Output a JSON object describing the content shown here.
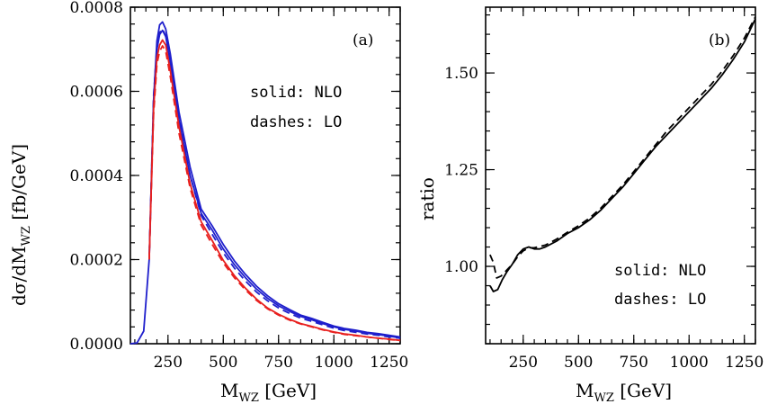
{
  "chart_data": [
    {
      "type": "line",
      "panel_label": "(a)",
      "xlabel_main": "M",
      "xlabel_sub": "WZ",
      "xlabel_unit": " [GeV]",
      "ylabel_main": "dσ/dM",
      "ylabel_sub": "WZ",
      "ylabel_unit": " [fb/GeV]",
      "xlim": [
        80,
        1300
      ],
      "ylim": [
        0,
        0.0008
      ],
      "xticks": [
        250,
        500,
        750,
        1000,
        1250
      ],
      "yticks": [
        0,
        0.0002,
        0.0004,
        0.0006,
        0.0008
      ],
      "xtick_labels": [
        "250",
        "500",
        "750",
        "1000",
        "1250"
      ],
      "ytick_labels": [
        "0.0000",
        "0.0002",
        "0.0004",
        "0.0006",
        "0.0008"
      ],
      "legend": {
        "solid": "solid: NLO",
        "dashes": "dashes: LO"
      },
      "series": [
        {
          "style": "solid",
          "color": "#1f1fcc",
          "x": [
            80,
            110,
            140,
            165,
            185,
            200,
            212,
            225,
            240,
            260,
            300,
            350,
            400,
            450,
            500,
            550,
            600,
            650,
            700,
            750,
            800,
            850,
            900,
            950,
            1000,
            1050,
            1100,
            1150,
            1200,
            1250,
            1300
          ],
          "y": [
            0,
            2e-06,
            3e-05,
            0.0002,
            0.00058,
            0.00072,
            0.000758,
            0.000765,
            0.000748,
            0.00069,
            0.00055,
            0.00042,
            0.00032,
            0.00028,
            0.000236,
            0.000197,
            0.000165,
            0.000137,
            0.000114,
            9.5e-05,
            8.1e-05,
            6.8e-05,
            6e-05,
            5.1e-05,
            4.2e-05,
            3.6e-05,
            3.2e-05,
            2.7e-05,
            2.4e-05,
            2e-05,
            1.6e-05
          ]
        },
        {
          "style": "solid",
          "color": "#1f1fcc",
          "x": [
            165,
            185,
            200,
            212,
            225,
            240,
            260,
            300,
            350,
            400,
            450,
            500,
            550,
            600,
            650,
            700,
            750,
            800,
            850,
            900,
            950,
            1000,
            1050,
            1100,
            1150,
            1200,
            1250,
            1300
          ],
          "y": [
            0.0002,
            0.00057,
            0.0007,
            0.000735,
            0.000745,
            0.00073,
            0.00067,
            0.00053,
            0.0004,
            0.00031,
            0.00027,
            0.000225,
            0.000188,
            0.000157,
            0.00013,
            0.000108,
            9e-05,
            7.7e-05,
            6.5e-05,
            5.7e-05,
            4.8e-05,
            4e-05,
            3.4e-05,
            3e-05,
            2.5e-05,
            2.2e-05,
            1.8e-05,
            1.4e-05
          ]
        },
        {
          "style": "dashed",
          "color": "#1f1fcc",
          "x": [
            165,
            185,
            200,
            212,
            225,
            240,
            260,
            300,
            350,
            400,
            450,
            500,
            550,
            600,
            650,
            700,
            750,
            800,
            850,
            900,
            950,
            1000,
            1050,
            1100,
            1150,
            1200,
            1250,
            1300
          ],
          "y": [
            0.0002,
            0.00059,
            0.000705,
            0.00074,
            0.000748,
            0.000732,
            0.000672,
            0.000535,
            0.0004,
            0.000305,
            0.00026,
            0.000216,
            0.00018,
            0.000149,
            0.000123,
            0.000102,
            8.5e-05,
            7.2e-05,
            6.1e-05,
            5.3e-05,
            4.5e-05,
            3.7e-05,
            3.1e-05,
            2.7e-05,
            2.3e-05,
            2e-05,
            1.6e-05,
            1.3e-05
          ]
        },
        {
          "style": "solid",
          "color": "#e8201e",
          "x": [
            165,
            185,
            200,
            212,
            225,
            240,
            260,
            300,
            350,
            400,
            450,
            500,
            550,
            600,
            650,
            700,
            750,
            800,
            850,
            900,
            950,
            1000,
            1050,
            1100,
            1150,
            1200,
            1250,
            1300
          ],
          "y": [
            0.0002,
            0.00056,
            0.00068,
            0.00071,
            0.000722,
            0.00071,
            0.00065,
            0.000515,
            0.00038,
            0.00029,
            0.000245,
            0.000198,
            0.000162,
            0.000132,
            0.000106,
            8.5e-05,
            7e-05,
            5.8e-05,
            4.8e-05,
            4.1e-05,
            3.4e-05,
            2.8e-05,
            2.3e-05,
            2e-05,
            1.6e-05,
            1.3e-05,
            1.1e-05,
            8e-06
          ]
        },
        {
          "style": "dashed",
          "color": "#e8201e",
          "x": [
            165,
            185,
            200,
            212,
            225,
            240,
            260,
            300,
            350,
            400,
            450,
            500,
            550,
            600,
            650,
            700,
            750,
            800,
            850,
            900,
            950,
            1000,
            1050,
            1100,
            1150,
            1200,
            1250,
            1300
          ],
          "y": [
            0.0002,
            0.000545,
            0.000665,
            0.000695,
            0.000708,
            0.000695,
            0.000636,
            0.0005,
            0.00037,
            0.000282,
            0.000236,
            0.000192,
            0.000157,
            0.000128,
            0.000103,
            8.3e-05,
            6.8e-05,
            5.6e-05,
            4.7e-05,
            4e-05,
            3.3e-05,
            2.7e-05,
            2.2e-05,
            1.9e-05,
            1.6e-05,
            1.3e-05,
            1e-05,
            8e-06
          ]
        }
      ]
    },
    {
      "type": "line",
      "panel_label": "(b)",
      "xlabel_main": "M",
      "xlabel_sub": "WZ",
      "xlabel_unit": " [GeV]",
      "ylabel": "ratio",
      "xlim": [
        80,
        1300
      ],
      "ylim": [
        0.8,
        1.67
      ],
      "xticks": [
        250,
        500,
        750,
        1000,
        1250
      ],
      "yticks": [
        1.0,
        1.25,
        1.5
      ],
      "xtick_labels": [
        "250",
        "500",
        "750",
        "1000",
        "1250"
      ],
      "ytick_labels": [
        "1.00",
        "1.25",
        "1.50"
      ],
      "legend": {
        "solid": "solid: NLO",
        "dashes": "dashes: LO"
      },
      "series": [
        {
          "style": "solid",
          "color": "#000000",
          "x": [
            100,
            115,
            135,
            155,
            175,
            200,
            225,
            250,
            275,
            300,
            325,
            350,
            400,
            450,
            500,
            550,
            600,
            650,
            700,
            750,
            800,
            850,
            900,
            950,
            1000,
            1050,
            1100,
            1150,
            1200,
            1250,
            1300
          ],
          "y": [
            0.95,
            0.935,
            0.94,
            0.965,
            0.985,
            1.005,
            1.03,
            1.045,
            1.05,
            1.045,
            1.045,
            1.05,
            1.065,
            1.085,
            1.1,
            1.12,
            1.145,
            1.175,
            1.205,
            1.24,
            1.275,
            1.31,
            1.34,
            1.37,
            1.4,
            1.43,
            1.46,
            1.495,
            1.535,
            1.58,
            1.64
          ]
        },
        {
          "style": "dashed",
          "color": "#000000",
          "x": [
            100,
            115,
            130,
            150,
            175,
            200,
            225,
            250,
            275,
            300,
            350,
            400,
            450,
            500,
            550,
            600,
            650,
            700,
            750,
            800,
            850,
            900,
            950,
            1000,
            1050,
            1100,
            1150,
            1200,
            1250,
            1300
          ],
          "y": [
            1.03,
            1.01,
            0.97,
            0.975,
            0.99,
            1.005,
            1.025,
            1.04,
            1.048,
            1.048,
            1.055,
            1.07,
            1.088,
            1.105,
            1.125,
            1.15,
            1.18,
            1.21,
            1.245,
            1.28,
            1.315,
            1.35,
            1.38,
            1.41,
            1.44,
            1.47,
            1.505,
            1.545,
            1.59,
            1.645
          ]
        }
      ]
    }
  ]
}
